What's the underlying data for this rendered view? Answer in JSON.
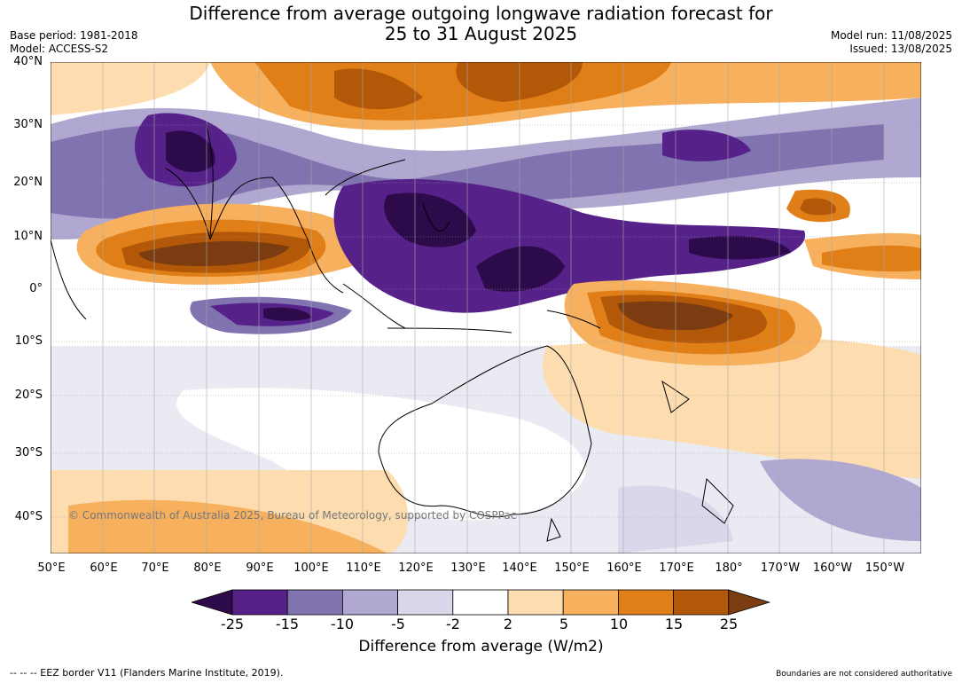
{
  "title": {
    "line1": "Difference from average outgoing longwave radiation forecast for",
    "line2": "25 to 31 August 2025"
  },
  "meta_left": {
    "base_period": "Base period: 1981-2018",
    "model": "Model: ACCESS-S2"
  },
  "meta_right": {
    "model_run": "Model run: 11/08/2025",
    "issued": "Issued: 13/08/2025"
  },
  "map": {
    "lat_labels": [
      "40°N",
      "30°N",
      "20°N",
      "10°N",
      "0°",
      "10°S",
      "20°S",
      "30°S",
      "40°S"
    ],
    "lon_labels": [
      "50°E",
      "60°E",
      "70°E",
      "80°E",
      "90°E",
      "100°E",
      "110°E",
      "120°E",
      "130°E",
      "140°E",
      "150°E",
      "160°E",
      "170°E",
      "180°",
      "170°W",
      "160°W",
      "150°W"
    ],
    "copyright": "© Commonwealth of Australia 2025, Bureau of Meteorology, supported by COSPPac"
  },
  "colorbar": {
    "title": "Difference from average (W/m2)",
    "tick_labels": [
      "-25",
      "-15",
      "-10",
      "-5",
      "-2",
      "2",
      "5",
      "10",
      "15",
      "25"
    ],
    "colors": [
      "#2d0b4a",
      "#56228a",
      "#8172b0",
      "#b0a8d0",
      "#d8d8ea",
      "#ffffff",
      "#fdddb0",
      "#f7b15e",
      "#e07f18",
      "#b35808",
      "#7a3c10"
    ]
  },
  "footer": {
    "left": "--  --  -- EEZ border V11 (Flanders Marine Institute, 2019).",
    "right": "Boundaries are not considered authoritative"
  }
}
